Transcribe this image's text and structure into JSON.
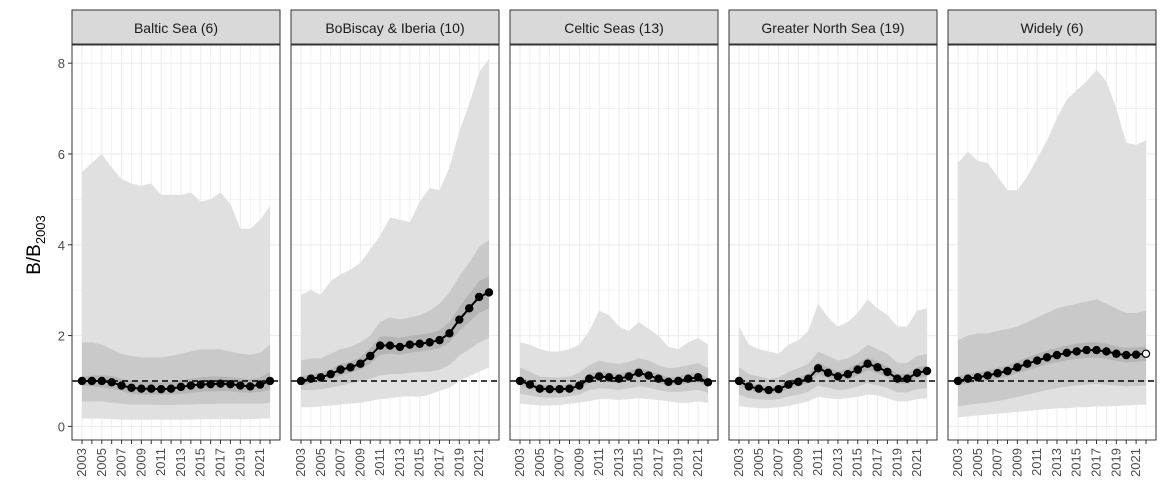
{
  "chart_data": {
    "type": "line",
    "ylabel_main": "B/B",
    "ylabel_sub": "2003",
    "ylim": [
      -0.3,
      8.4
    ],
    "yticks": [
      0,
      2,
      4,
      6,
      8
    ],
    "x": [
      2003,
      2004,
      2005,
      2006,
      2007,
      2008,
      2009,
      2010,
      2011,
      2012,
      2013,
      2014,
      2015,
      2016,
      2017,
      2018,
      2019,
      2020,
      2021,
      2022
    ],
    "xtick_labels": [
      "2003",
      "2005",
      "2007",
      "2009",
      "2011",
      "2013",
      "2015",
      "2017",
      "2019",
      "2021"
    ],
    "reference_line": 1,
    "grid": true,
    "colors": {
      "outer_band": "#e0e0e0",
      "mid_band": "#c9c9c9",
      "inner_band": "#b5b5b5",
      "line": "#000000",
      "strip": "#d9d9d9",
      "reference": "#000000"
    },
    "panels": [
      {
        "title": "Baltic Sea (6)",
        "median": [
          1.0,
          1.0,
          1.0,
          0.97,
          0.9,
          0.85,
          0.83,
          0.83,
          0.82,
          0.83,
          0.87,
          0.9,
          0.92,
          0.93,
          0.94,
          0.93,
          0.9,
          0.88,
          0.92,
          1.0
        ],
        "outer_low": [
          0.18,
          0.17,
          0.17,
          0.16,
          0.15,
          0.15,
          0.15,
          0.15,
          0.15,
          0.15,
          0.15,
          0.15,
          0.16,
          0.16,
          0.16,
          0.16,
          0.16,
          0.16,
          0.17,
          0.18
        ],
        "outer_high": [
          5.6,
          5.8,
          6.0,
          5.7,
          5.45,
          5.35,
          5.3,
          5.35,
          5.1,
          5.1,
          5.1,
          5.15,
          4.95,
          5.0,
          5.15,
          4.9,
          4.35,
          4.35,
          4.55,
          4.85
        ],
        "mid_low": [
          0.55,
          0.55,
          0.55,
          0.52,
          0.5,
          0.48,
          0.48,
          0.48,
          0.47,
          0.47,
          0.48,
          0.48,
          0.49,
          0.49,
          0.5,
          0.5,
          0.5,
          0.5,
          0.5,
          0.52
        ],
        "mid_high": [
          1.85,
          1.85,
          1.8,
          1.7,
          1.6,
          1.55,
          1.52,
          1.52,
          1.52,
          1.55,
          1.6,
          1.65,
          1.7,
          1.7,
          1.7,
          1.65,
          1.6,
          1.58,
          1.62,
          1.8
        ],
        "inner_low": [
          0.9,
          0.88,
          0.86,
          0.83,
          0.78,
          0.72,
          0.7,
          0.7,
          0.7,
          0.7,
          0.72,
          0.74,
          0.76,
          0.77,
          0.78,
          0.77,
          0.75,
          0.74,
          0.76,
          0.8
        ],
        "inner_high": [
          1.1,
          1.12,
          1.13,
          1.11,
          1.05,
          1.0,
          0.98,
          0.98,
          0.97,
          0.98,
          1.02,
          1.05,
          1.08,
          1.1,
          1.1,
          1.09,
          1.06,
          1.04,
          1.08,
          1.2
        ],
        "open_last": false
      },
      {
        "title": "BoBiscay & Iberia (10)",
        "median": [
          1.0,
          1.05,
          1.08,
          1.15,
          1.25,
          1.3,
          1.38,
          1.55,
          1.78,
          1.78,
          1.75,
          1.8,
          1.82,
          1.85,
          1.9,
          2.05,
          2.35,
          2.6,
          2.85,
          2.95
        ],
        "outer_low": [
          0.42,
          0.42,
          0.44,
          0.46,
          0.48,
          0.5,
          0.52,
          0.56,
          0.6,
          0.62,
          0.65,
          0.66,
          0.65,
          0.7,
          0.78,
          0.85,
          1.0,
          1.1,
          1.2,
          1.3
        ],
        "outer_high": [
          2.9,
          3.0,
          2.9,
          3.2,
          3.35,
          3.45,
          3.6,
          3.9,
          4.2,
          4.6,
          4.55,
          4.5,
          4.95,
          5.25,
          5.2,
          5.7,
          6.5,
          7.1,
          7.8,
          8.1
        ],
        "mid_low": [
          0.8,
          0.8,
          0.82,
          0.85,
          0.9,
          0.95,
          1.0,
          1.05,
          1.12,
          1.15,
          1.15,
          1.18,
          1.2,
          1.2,
          1.25,
          1.35,
          1.55,
          1.7,
          1.85,
          1.95
        ],
        "mid_high": [
          1.45,
          1.5,
          1.5,
          1.6,
          1.7,
          1.75,
          1.85,
          2.0,
          2.3,
          2.4,
          2.35,
          2.4,
          2.45,
          2.55,
          2.7,
          2.95,
          3.3,
          3.6,
          3.95,
          4.1
        ],
        "inner_low": [
          0.9,
          0.95,
          0.98,
          1.05,
          1.12,
          1.18,
          1.25,
          1.38,
          1.58,
          1.6,
          1.58,
          1.62,
          1.65,
          1.68,
          1.72,
          1.85,
          2.1,
          2.3,
          2.5,
          2.6
        ],
        "inner_high": [
          1.1,
          1.15,
          1.18,
          1.25,
          1.38,
          1.42,
          1.52,
          1.72,
          1.98,
          1.98,
          1.95,
          2.0,
          2.02,
          2.05,
          2.12,
          2.3,
          2.62,
          2.92,
          3.2,
          3.3
        ],
        "open_last": false
      },
      {
        "title": "Celtic Seas (13)",
        "median": [
          1.0,
          0.92,
          0.83,
          0.82,
          0.82,
          0.83,
          0.9,
          1.05,
          1.1,
          1.08,
          1.05,
          1.1,
          1.18,
          1.12,
          1.05,
          0.98,
          1.0,
          1.05,
          1.08,
          0.97
        ],
        "outer_low": [
          0.5,
          0.48,
          0.46,
          0.46,
          0.47,
          0.5,
          0.52,
          0.56,
          0.6,
          0.6,
          0.58,
          0.6,
          0.62,
          0.6,
          0.58,
          0.55,
          0.52,
          0.52,
          0.55,
          0.52
        ],
        "outer_high": [
          1.85,
          1.8,
          1.7,
          1.65,
          1.65,
          1.7,
          1.8,
          2.1,
          2.55,
          2.45,
          2.2,
          2.1,
          2.3,
          2.15,
          2.0,
          1.75,
          1.7,
          1.85,
          1.95,
          1.8
        ],
        "mid_low": [
          0.72,
          0.68,
          0.64,
          0.63,
          0.64,
          0.66,
          0.7,
          0.8,
          0.84,
          0.83,
          0.8,
          0.84,
          0.88,
          0.85,
          0.8,
          0.76,
          0.76,
          0.78,
          0.8,
          0.74
        ],
        "mid_high": [
          1.3,
          1.2,
          1.1,
          1.08,
          1.08,
          1.1,
          1.18,
          1.35,
          1.45,
          1.4,
          1.38,
          1.42,
          1.5,
          1.45,
          1.35,
          1.28,
          1.3,
          1.35,
          1.4,
          1.28
        ],
        "inner_low": [
          0.9,
          0.84,
          0.76,
          0.75,
          0.75,
          0.76,
          0.82,
          0.95,
          1.0,
          0.98,
          0.95,
          1.0,
          1.06,
          1.02,
          0.95,
          0.9,
          0.91,
          0.95,
          0.98,
          0.88
        ],
        "inner_high": [
          1.1,
          1.01,
          0.92,
          0.9,
          0.9,
          0.91,
          0.99,
          1.16,
          1.21,
          1.19,
          1.16,
          1.21,
          1.3,
          1.23,
          1.16,
          1.08,
          1.1,
          1.16,
          1.19,
          1.07
        ],
        "open_last": false
      },
      {
        "title": "Greater North Sea (19)",
        "median": [
          1.0,
          0.88,
          0.83,
          0.8,
          0.82,
          0.92,
          0.98,
          1.05,
          1.28,
          1.18,
          1.1,
          1.15,
          1.25,
          1.38,
          1.3,
          1.2,
          1.05,
          1.05,
          1.18,
          1.22
        ],
        "outer_low": [
          0.45,
          0.42,
          0.4,
          0.4,
          0.42,
          0.45,
          0.5,
          0.55,
          0.65,
          0.62,
          0.6,
          0.62,
          0.65,
          0.7,
          0.68,
          0.62,
          0.55,
          0.55,
          0.6,
          0.62
        ],
        "outer_high": [
          2.2,
          1.8,
          1.7,
          1.65,
          1.6,
          1.8,
          1.9,
          2.1,
          2.7,
          2.4,
          2.2,
          2.3,
          2.5,
          2.8,
          2.6,
          2.45,
          2.2,
          2.2,
          2.55,
          2.6
        ],
        "mid_low": [
          0.7,
          0.62,
          0.6,
          0.58,
          0.6,
          0.66,
          0.7,
          0.76,
          0.9,
          0.85,
          0.8,
          0.82,
          0.88,
          0.95,
          0.9,
          0.85,
          0.75,
          0.75,
          0.82,
          0.85
        ],
        "mid_high": [
          1.3,
          1.15,
          1.1,
          1.05,
          1.08,
          1.2,
          1.28,
          1.38,
          1.65,
          1.55,
          1.45,
          1.5,
          1.62,
          1.8,
          1.7,
          1.6,
          1.4,
          1.4,
          1.55,
          1.6
        ],
        "inner_low": [
          0.9,
          0.79,
          0.75,
          0.72,
          0.74,
          0.83,
          0.88,
          0.95,
          1.15,
          1.06,
          0.99,
          1.03,
          1.12,
          1.24,
          1.17,
          1.08,
          0.94,
          0.94,
          1.06,
          1.1
        ],
        "inner_high": [
          1.1,
          0.97,
          0.91,
          0.88,
          0.9,
          1.01,
          1.08,
          1.16,
          1.41,
          1.3,
          1.21,
          1.27,
          1.38,
          1.52,
          1.43,
          1.32,
          1.16,
          1.16,
          1.3,
          1.34
        ],
        "open_last": false
      },
      {
        "title": "Widely (6)",
        "median": [
          1.0,
          1.05,
          1.08,
          1.12,
          1.17,
          1.22,
          1.3,
          1.38,
          1.45,
          1.52,
          1.57,
          1.62,
          1.65,
          1.68,
          1.68,
          1.65,
          1.6,
          1.57,
          1.58,
          1.6
        ],
        "outer_low": [
          0.2,
          0.22,
          0.24,
          0.26,
          0.28,
          0.3,
          0.32,
          0.34,
          0.36,
          0.38,
          0.4,
          0.4,
          0.42,
          0.42,
          0.44,
          0.44,
          0.45,
          0.46,
          0.47,
          0.48
        ],
        "outer_high": [
          5.8,
          6.05,
          5.85,
          5.8,
          5.5,
          5.2,
          5.2,
          5.5,
          5.9,
          6.3,
          6.8,
          7.2,
          7.4,
          7.6,
          7.85,
          7.6,
          7.0,
          6.25,
          6.2,
          6.3
        ],
        "mid_low": [
          0.45,
          0.47,
          0.5,
          0.52,
          0.56,
          0.6,
          0.65,
          0.7,
          0.75,
          0.8,
          0.84,
          0.88,
          0.9,
          0.92,
          0.93,
          0.92,
          0.9,
          0.88,
          0.89,
          0.9
        ],
        "mid_high": [
          1.9,
          2.0,
          2.05,
          2.05,
          2.1,
          2.15,
          2.2,
          2.3,
          2.4,
          2.5,
          2.6,
          2.65,
          2.7,
          2.75,
          2.8,
          2.7,
          2.6,
          2.5,
          2.5,
          2.55
        ],
        "inner_low": [
          0.9,
          0.95,
          0.98,
          1.01,
          1.05,
          1.1,
          1.17,
          1.24,
          1.3,
          1.37,
          1.41,
          1.46,
          1.49,
          1.51,
          1.51,
          1.49,
          1.44,
          1.41,
          1.42,
          1.44
        ],
        "inner_high": [
          1.1,
          1.16,
          1.19,
          1.23,
          1.29,
          1.34,
          1.43,
          1.52,
          1.6,
          1.67,
          1.73,
          1.78,
          1.82,
          1.85,
          1.85,
          1.82,
          1.76,
          1.73,
          1.74,
          1.76
        ],
        "open_last": true
      }
    ]
  }
}
